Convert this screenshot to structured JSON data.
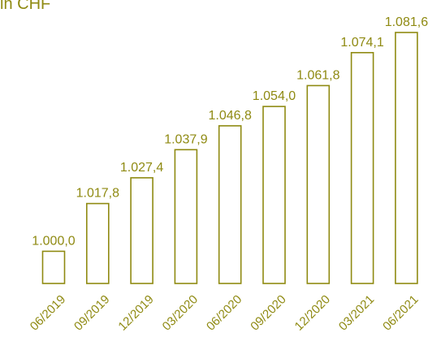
{
  "chart_data": {
    "type": "bar",
    "unit_label": "in CHF",
    "categories": [
      "06/2019",
      "09/2019",
      "12/2019",
      "03/2020",
      "06/2020",
      "09/2020",
      "12/2020",
      "03/2021",
      "06/2021"
    ],
    "values": [
      1000.0,
      1017.8,
      1027.4,
      1037.9,
      1046.8,
      1054.0,
      1061.8,
      1074.1,
      1081.6
    ],
    "data_labels": [
      "1.000,0",
      "1.017,8",
      "1.027,4",
      "1.037,9",
      "1.046,8",
      "1.054,0",
      "1.061,8",
      "1.074,1",
      "1.081,6"
    ],
    "title": "",
    "xlabel": "",
    "ylabel": "",
    "ylim": [
      988,
      1081.6
    ],
    "grid": false,
    "legend": "none",
    "colors": {
      "bar_stroke": "#8f8a12",
      "bar_fill": "#ffffff",
      "text": "#8f8a12"
    }
  }
}
